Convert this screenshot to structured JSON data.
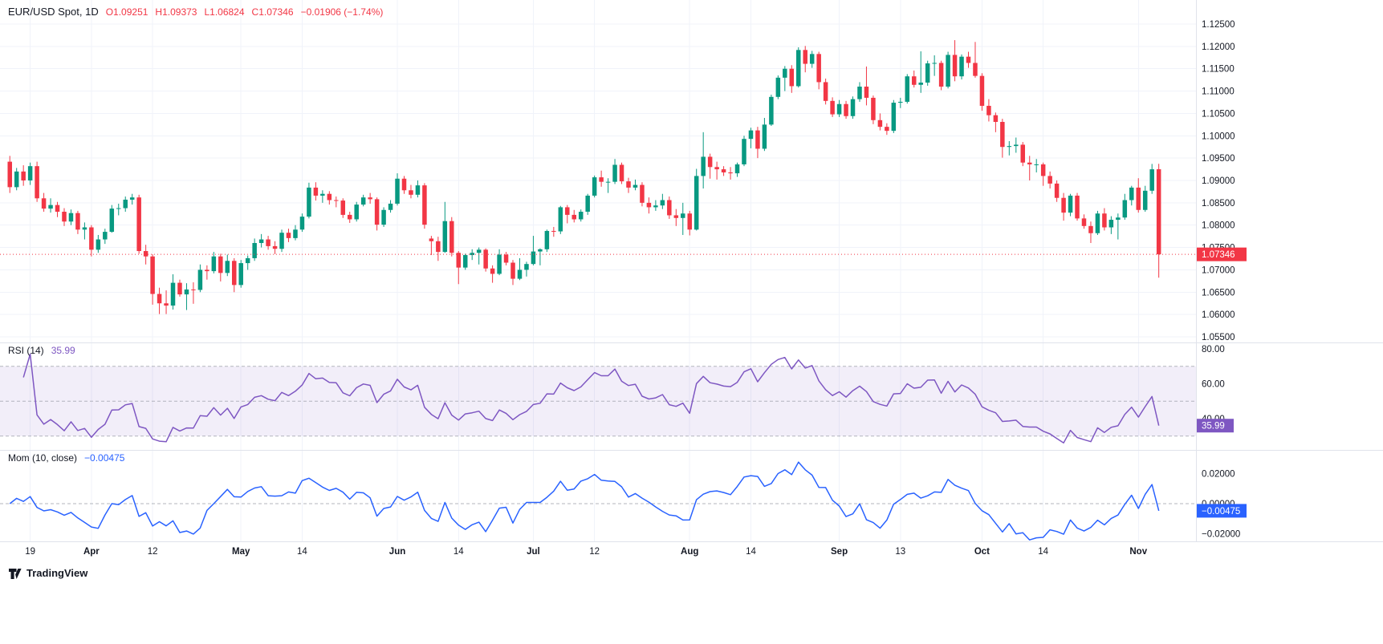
{
  "header": {
    "symbol": "EUR/USD Spot, 1D",
    "o": "O1.09251",
    "h": "H1.09373",
    "l": "L1.06824",
    "c": "C1.07346",
    "change": "−0.01906 (−1.74%)"
  },
  "panes": {
    "rsi": {
      "title": "RSI (14)",
      "value": "35.99",
      "badge": "35.99",
      "axis": [
        "80.00",
        "60.00",
        "40.00"
      ],
      "axis_values": [
        80,
        60,
        40
      ]
    },
    "mom": {
      "title": "Mom (10, close)",
      "value": "−0.00475",
      "badge": "−0.00475",
      "axis": [
        "0.02000",
        "0.00000",
        "−0.02000"
      ],
      "axis_values": [
        0.02,
        0,
        -0.02
      ]
    }
  },
  "price_axis": {
    "labels": [
      "1.12500",
      "1.12000",
      "1.11500",
      "1.11000",
      "1.10500",
      "1.10000",
      "1.09500",
      "1.09000",
      "1.08500",
      "1.08000",
      "1.07500",
      "1.07000",
      "1.06500",
      "1.06000",
      "1.05500"
    ],
    "current_badge": "1.07346",
    "current_value": 1.07346
  },
  "time_axis": {
    "ticks": [
      {
        "label": "19",
        "i": 3,
        "month": false
      },
      {
        "label": "Apr",
        "i": 12,
        "month": true
      },
      {
        "label": "12",
        "i": 21,
        "month": false
      },
      {
        "label": "May",
        "i": 34,
        "month": true
      },
      {
        "label": "14",
        "i": 43,
        "month": false
      },
      {
        "label": "Jun",
        "i": 57,
        "month": true
      },
      {
        "label": "14",
        "i": 66,
        "month": false
      },
      {
        "label": "Jul",
        "i": 77,
        "month": true
      },
      {
        "label": "12",
        "i": 86,
        "month": false
      },
      {
        "label": "Aug",
        "i": 100,
        "month": true
      },
      {
        "label": "14",
        "i": 109,
        "month": false
      },
      {
        "label": "Sep",
        "i": 122,
        "month": true
      },
      {
        "label": "13",
        "i": 131,
        "month": false
      },
      {
        "label": "Oct",
        "i": 143,
        "month": true
      },
      {
        "label": "14",
        "i": 152,
        "month": false
      },
      {
        "label": "Nov",
        "i": 166,
        "month": true
      }
    ]
  },
  "footer": {
    "brand": "TradingView"
  },
  "colors": {
    "up": "#089981",
    "down": "#F23645",
    "rsi": "#7E57C2",
    "mom": "#2962FF",
    "grid": "#F0F3FA",
    "axis_text": "#131722",
    "separator": "#E0E3EB",
    "band_fill": "rgba(126,87,194,0.1)",
    "level_line": "#A1A4AD"
  },
  "chart_data": [
    {
      "type": "candlestick",
      "name": "EUR/USD Spot",
      "interval": "1D",
      "last_close": 1.07346,
      "ohlc_last": {
        "o": 1.09251,
        "h": 1.09373,
        "l": 1.06824,
        "c": 1.07346,
        "change": -0.01906,
        "change_pct": -1.74
      },
      "ylim": [
        1.055,
        1.125
      ],
      "y_tick_step": 0.005,
      "candles": [
        [
          1.0942,
          1.0955,
          1.0872,
          1.0885
        ],
        [
          1.0885,
          1.0928,
          1.0878,
          1.092
        ],
        [
          1.092,
          1.0934,
          1.0888,
          1.09
        ],
        [
          1.09,
          1.094,
          1.089,
          1.0932
        ],
        [
          1.0932,
          1.0942,
          1.0852,
          1.086
        ],
        [
          1.086,
          1.0872,
          1.083,
          1.0837
        ],
        [
          1.0837,
          1.086,
          1.0828,
          1.0845
        ],
        [
          1.0845,
          1.0852,
          1.0818,
          1.083
        ],
        [
          1.083,
          1.0838,
          1.0798,
          1.0808
        ],
        [
          1.0808,
          1.0835,
          1.08,
          1.0827
        ],
        [
          1.0827,
          1.0832,
          1.078,
          1.079
        ],
        [
          1.079,
          1.0806,
          1.0768,
          1.0795
        ],
        [
          1.0795,
          1.08,
          1.073,
          1.0745
        ],
        [
          1.0745,
          1.0778,
          1.0738,
          1.0768
        ],
        [
          1.0768,
          1.0792,
          1.0758,
          1.0785
        ],
        [
          1.0785,
          1.0845,
          1.0783,
          1.0837
        ],
        [
          1.0837,
          1.0848,
          1.0822,
          1.0838
        ],
        [
          1.0838,
          1.0864,
          1.083,
          1.0857
        ],
        [
          1.0857,
          1.087,
          1.0846,
          1.0862
        ],
        [
          1.0862,
          1.0868,
          1.0736,
          1.0742
        ],
        [
          1.0742,
          1.0756,
          1.0712,
          1.073
        ],
        [
          1.073,
          1.0735,
          1.0622,
          1.0646
        ],
        [
          1.0646,
          1.066,
          1.0601,
          1.0625
        ],
        [
          1.0625,
          1.0654,
          1.0601,
          1.062
        ],
        [
          1.062,
          1.069,
          1.0611,
          1.0671
        ],
        [
          1.0671,
          1.0678,
          1.064,
          1.0645
        ],
        [
          1.0645,
          1.067,
          1.061,
          1.0656
        ],
        [
          1.0656,
          1.0672,
          1.0624,
          1.0655
        ],
        [
          1.0655,
          1.0712,
          1.065,
          1.07
        ],
        [
          1.07,
          1.071,
          1.0678,
          1.0697
        ],
        [
          1.0697,
          1.074,
          1.0692,
          1.073
        ],
        [
          1.073,
          1.0736,
          1.0674,
          1.0693
        ],
        [
          1.0693,
          1.0734,
          1.0686,
          1.072
        ],
        [
          1.072,
          1.0726,
          1.065,
          1.0666
        ],
        [
          1.0666,
          1.0722,
          1.066,
          1.0715
        ],
        [
          1.0715,
          1.0732,
          1.07,
          1.0726
        ],
        [
          1.0726,
          1.077,
          1.072,
          1.076
        ],
        [
          1.076,
          1.078,
          1.075,
          1.0768
        ],
        [
          1.0768,
          1.0776,
          1.0745,
          1.0753
        ],
        [
          1.0753,
          1.0764,
          1.0735,
          1.0747
        ],
        [
          1.0747,
          1.079,
          1.074,
          1.0783
        ],
        [
          1.0783,
          1.0792,
          1.0762,
          1.0771
        ],
        [
          1.0771,
          1.08,
          1.0766,
          1.079
        ],
        [
          1.079,
          1.0826,
          1.0785,
          1.0819
        ],
        [
          1.0819,
          1.0895,
          1.0815,
          1.0884
        ],
        [
          1.0884,
          1.0896,
          1.0855,
          1.0866
        ],
        [
          1.0866,
          1.0878,
          1.085,
          1.087
        ],
        [
          1.087,
          1.0876,
          1.0846,
          1.0856
        ],
        [
          1.0856,
          1.0864,
          1.084,
          1.0855
        ],
        [
          1.0855,
          1.086,
          1.0816,
          1.0823
        ],
        [
          1.0823,
          1.083,
          1.0805,
          1.0813
        ],
        [
          1.0813,
          1.0852,
          1.0808,
          1.0846
        ],
        [
          1.0846,
          1.0868,
          1.0842,
          1.0862
        ],
        [
          1.0862,
          1.0872,
          1.0848,
          1.0858
        ],
        [
          1.0858,
          1.0862,
          1.0788,
          1.0801
        ],
        [
          1.0801,
          1.084,
          1.0796,
          1.0834
        ],
        [
          1.0834,
          1.0856,
          1.0828,
          1.0848
        ],
        [
          1.0848,
          1.0916,
          1.0844,
          1.0904
        ],
        [
          1.0904,
          1.091,
          1.087,
          1.0878
        ],
        [
          1.0878,
          1.089,
          1.086,
          1.0868
        ],
        [
          1.0868,
          1.09,
          1.0862,
          1.0889
        ],
        [
          1.0889,
          1.0894,
          1.0792,
          1.0801
        ],
        [
          1.077,
          1.0776,
          1.0733,
          1.0764
        ],
        [
          1.0764,
          1.0774,
          1.072,
          1.074
        ],
        [
          1.074,
          1.0852,
          1.0738,
          1.0809
        ],
        [
          1.0809,
          1.0818,
          1.073,
          1.0738
        ],
        [
          1.0738,
          1.0742,
          1.0668,
          1.0705
        ],
        [
          1.0705,
          1.0736,
          1.07,
          1.0733
        ],
        [
          1.0733,
          1.0746,
          1.0722,
          1.0738
        ],
        [
          1.0738,
          1.075,
          1.0712,
          1.0745
        ],
        [
          1.0745,
          1.0748,
          1.0696,
          1.0703
        ],
        [
          1.0703,
          1.071,
          1.0671,
          1.0691
        ],
        [
          1.0691,
          1.0746,
          1.0688,
          1.0734
        ],
        [
          1.0734,
          1.074,
          1.071,
          1.0716
        ],
        [
          1.0716,
          1.0722,
          1.0666,
          1.068
        ],
        [
          1.068,
          1.0726,
          1.0677,
          1.07
        ],
        [
          1.07,
          1.0718,
          1.0685,
          1.0713
        ],
        [
          1.0713,
          1.0776,
          1.071,
          1.0741
        ],
        [
          1.0741,
          1.0748,
          1.071,
          1.0746
        ],
        [
          1.0746,
          1.079,
          1.074,
          1.0787
        ],
        [
          1.0787,
          1.0796,
          1.0774,
          1.0786
        ],
        [
          1.0786,
          1.0843,
          1.078,
          1.084
        ],
        [
          1.084,
          1.0845,
          1.0804,
          1.0823
        ],
        [
          1.0823,
          1.0834,
          1.0806,
          1.0813
        ],
        [
          1.0813,
          1.0835,
          1.0808,
          1.083
        ],
        [
          1.083,
          1.087,
          1.0823,
          1.0866
        ],
        [
          1.0866,
          1.0911,
          1.0862,
          1.0907
        ],
        [
          1.0907,
          1.0922,
          1.0886,
          1.0897
        ],
        [
          1.0897,
          1.0905,
          1.0872,
          1.0897
        ],
        [
          1.0897,
          1.0948,
          1.0892,
          1.0935
        ],
        [
          1.0935,
          1.094,
          1.0892,
          1.0898
        ],
        [
          1.0898,
          1.0906,
          1.0872,
          1.0884
        ],
        [
          1.0884,
          1.0902,
          1.0878,
          1.089
        ],
        [
          1.089,
          1.0896,
          1.0842,
          1.085
        ],
        [
          1.085,
          1.0862,
          1.0826,
          1.084
        ],
        [
          1.084,
          1.0856,
          1.0832,
          1.0844
        ],
        [
          1.0844,
          1.087,
          1.0836,
          1.0856
        ],
        [
          1.0856,
          1.0864,
          1.0814,
          1.0822
        ],
        [
          1.0822,
          1.0836,
          1.0798,
          1.0816
        ],
        [
          1.0816,
          1.085,
          1.0778,
          1.0826
        ],
        [
          1.0826,
          1.0832,
          1.0777,
          1.079
        ],
        [
          1.079,
          1.0926,
          1.0788,
          1.091
        ],
        [
          1.091,
          1.1008,
          1.0882,
          1.0953
        ],
        [
          1.0953,
          1.096,
          1.0904,
          1.093
        ],
        [
          1.093,
          1.0942,
          1.0902,
          1.0925
        ],
        [
          1.0925,
          1.0932,
          1.091,
          1.0918
        ],
        [
          1.0918,
          1.093,
          1.0902,
          1.0916
        ],
        [
          1.0916,
          1.094,
          1.0908,
          1.0936
        ],
        [
          1.0936,
          1.1,
          1.0932,
          1.0993
        ],
        [
          1.0993,
          1.1018,
          1.0972,
          1.1012
        ],
        [
          1.1012,
          1.102,
          1.095,
          1.0971
        ],
        [
          1.0971,
          1.104,
          1.0966,
          1.1025
        ],
        [
          1.1025,
          1.1092,
          1.1022,
          1.1087
        ],
        [
          1.1087,
          1.1135,
          1.1082,
          1.113
        ],
        [
          1.113,
          1.1156,
          1.11,
          1.115
        ],
        [
          1.115,
          1.1158,
          1.1096,
          1.1111
        ],
        [
          1.1111,
          1.1198,
          1.1108,
          1.1192
        ],
        [
          1.1192,
          1.1201,
          1.1142,
          1.1161
        ],
        [
          1.1161,
          1.119,
          1.1152,
          1.1183
        ],
        [
          1.1183,
          1.1188,
          1.1104,
          1.112
        ],
        [
          1.112,
          1.1128,
          1.107,
          1.1078
        ],
        [
          1.1078,
          1.1086,
          1.1042,
          1.1048
        ],
        [
          1.1048,
          1.108,
          1.1042,
          1.1071
        ],
        [
          1.1071,
          1.1078,
          1.1038,
          1.1044
        ],
        [
          1.1044,
          1.1088,
          1.1038,
          1.1082
        ],
        [
          1.1082,
          1.112,
          1.1076,
          1.111
        ],
        [
          1.111,
          1.1155,
          1.1068,
          1.1085
        ],
        [
          1.1085,
          1.109,
          1.1026,
          1.1035
        ],
        [
          1.1035,
          1.105,
          1.1012,
          1.102
        ],
        [
          1.102,
          1.1028,
          1.1002,
          1.1011
        ],
        [
          1.1011,
          1.108,
          1.1006,
          1.1074
        ],
        [
          1.1074,
          1.1085,
          1.1062,
          1.1076
        ],
        [
          1.1076,
          1.1138,
          1.1072,
          1.1133
        ],
        [
          1.1133,
          1.1146,
          1.1108,
          1.1114
        ],
        [
          1.1114,
          1.1189,
          1.1096,
          1.1119
        ],
        [
          1.1119,
          1.1168,
          1.1112,
          1.1162
        ],
        [
          1.1162,
          1.118,
          1.1134,
          1.1163
        ],
        [
          1.1163,
          1.1168,
          1.1102,
          1.111
        ],
        [
          1.111,
          1.1188,
          1.1106,
          1.1181
        ],
        [
          1.1181,
          1.1214,
          1.1122,
          1.1133
        ],
        [
          1.1133,
          1.1182,
          1.1126,
          1.1177
        ],
        [
          1.1177,
          1.1188,
          1.1152,
          1.1163
        ],
        [
          1.1163,
          1.121,
          1.113,
          1.1134
        ],
        [
          1.1134,
          1.114,
          1.1056,
          1.1067
        ],
        [
          1.1067,
          1.1082,
          1.1032,
          1.1046
        ],
        [
          1.1046,
          1.1052,
          1.1008,
          1.1031
        ],
        [
          1.1031,
          1.1038,
          1.0951,
          1.0975
        ],
        [
          1.0975,
          1.0988,
          1.0956,
          1.0977
        ],
        [
          1.0977,
          1.0996,
          1.0962,
          1.098
        ],
        [
          1.098,
          1.0986,
          1.0932,
          1.094
        ],
        [
          1.094,
          1.0955,
          1.09,
          1.0936
        ],
        [
          1.0936,
          1.0948,
          1.0918,
          1.0936
        ],
        [
          1.0936,
          1.094,
          1.0888,
          1.091
        ],
        [
          1.091,
          1.092,
          1.0882,
          1.0893
        ],
        [
          1.0893,
          1.09,
          1.0852,
          1.0861
        ],
        [
          1.0861,
          1.0872,
          1.081,
          1.0828
        ],
        [
          1.0828,
          1.087,
          1.082,
          1.0866
        ],
        [
          1.0866,
          1.0872,
          1.081,
          1.0815
        ],
        [
          1.0815,
          1.0824,
          1.0792,
          1.0798
        ],
        [
          1.0798,
          1.0808,
          1.076,
          1.0782
        ],
        [
          1.0782,
          1.0832,
          1.0778,
          1.0826
        ],
        [
          1.0826,
          1.0838,
          1.0788,
          1.0795
        ],
        [
          1.0795,
          1.082,
          1.078,
          1.0812
        ],
        [
          1.0812,
          1.0826,
          1.0768,
          1.0817
        ],
        [
          1.0817,
          1.087,
          1.0812,
          1.0856
        ],
        [
          1.0856,
          1.0888,
          1.0844,
          1.0884
        ],
        [
          1.0884,
          1.0905,
          1.0828,
          1.0834
        ],
        [
          1.0834,
          1.0888,
          1.083,
          1.0877
        ],
        [
          1.0877,
          1.0937,
          1.087,
          1.0925
        ],
        [
          1.09251,
          1.09373,
          1.06824,
          1.07346
        ]
      ]
    },
    {
      "type": "line",
      "name": "RSI (14)",
      "source": "close",
      "period": 14,
      "last": 35.99,
      "levels": [
        80,
        60,
        40
      ],
      "band": [
        30,
        70
      ],
      "ylim": [
        22,
        83
      ]
    },
    {
      "type": "line",
      "name": "Mom (10, close)",
      "source": "close",
      "period": 10,
      "last": -0.00475,
      "levels": [
        0.02,
        0,
        -0.02
      ],
      "ylim": [
        -0.03,
        0.033
      ]
    }
  ]
}
